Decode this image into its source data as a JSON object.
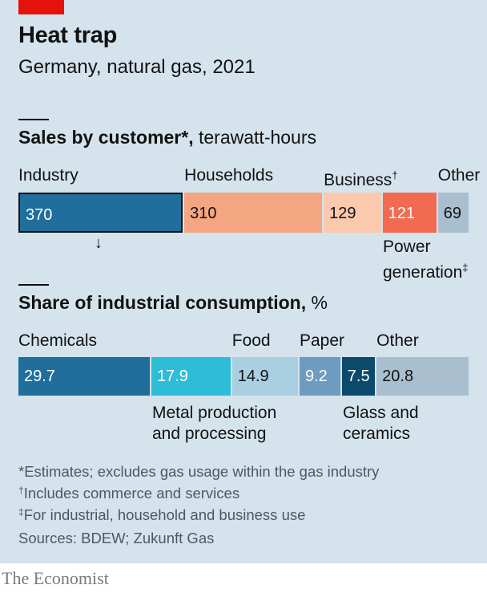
{
  "header": {
    "title": "Heat trap",
    "subtitle": "Germany, natural gas, 2021"
  },
  "chart_data": [
    {
      "type": "bar",
      "orientation": "stacked-horizontal",
      "title_bold": "Sales by customer*,",
      "title_unit": " terawatt-hours",
      "categories": [
        "Industry",
        "Households",
        "Business",
        "Power generation",
        "Other"
      ],
      "values": [
        370,
        310,
        129,
        121,
        69
      ],
      "labels": [
        "Industry",
        "Households",
        "Business",
        "Power",
        "Other"
      ],
      "label_suffix": [
        "",
        "",
        "†",
        "",
        ""
      ],
      "label_line2": "generation",
      "label_line2_suffix": "‡",
      "colors": [
        "#1f6e9c",
        "#f4a582",
        "#fbc9ae",
        "#f26a4f",
        "#a9bfcf"
      ],
      "value_colors": [
        "#ffffff",
        "#121212",
        "#121212",
        "#ffffff",
        "#121212"
      ],
      "highlight": "Industry",
      "arrow": "↓"
    },
    {
      "type": "bar",
      "orientation": "stacked-horizontal",
      "title_bold": "Share of industrial consumption,",
      "title_unit": " %",
      "categories": [
        "Chemicals",
        "Metal production and processing",
        "Food",
        "Paper",
        "Glass and ceramics",
        "Other"
      ],
      "values": [
        29.7,
        17.9,
        14.9,
        9.2,
        7.5,
        20.8
      ],
      "value_labels": [
        "29.7",
        "17.9",
        "14.9",
        "9.2",
        "7.5",
        "20.8"
      ],
      "labels": [
        "Chemicals",
        "Metal production",
        "Food",
        "Paper",
        "Glass and",
        "Other"
      ],
      "label_line2": [
        "",
        "and processing",
        "",
        "",
        "ceramics",
        ""
      ],
      "colors": [
        "#1f6e9c",
        "#2fbcd6",
        "#a9cfe0",
        "#6d9cc0",
        "#0b4a6b",
        "#a9bfcf"
      ],
      "value_colors": [
        "#ffffff",
        "#ffffff",
        "#121212",
        "#ffffff",
        "#ffffff",
        "#121212"
      ]
    }
  ],
  "footnotes": {
    "f1": "*Estimates; excludes gas usage within the gas industry",
    "f2_mark": "†",
    "f2": "Includes commerce and services",
    "f3_mark": "‡",
    "f3": "For industrial, household and business use",
    "sources": "Sources: BDEW; Zukunft Gas"
  },
  "brand": "The Economist"
}
